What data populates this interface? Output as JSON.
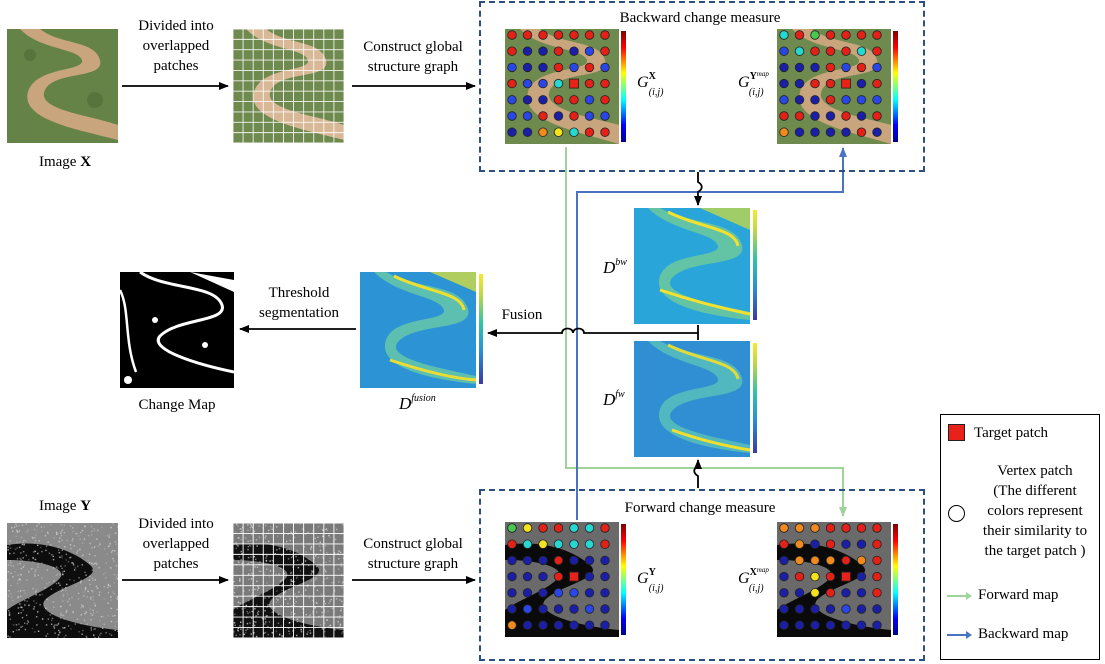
{
  "top": {
    "image_x_label": "Image X",
    "image_x_prefix": "Image ",
    "image_x_bold": "X",
    "divide_label": "Divided into\noverlapped\npatches",
    "construct_label": "Construct global\nstructure graph",
    "backward_title": "Backward change measure",
    "g_x_main": "G",
    "g_x_sup": "X",
    "g_x_sub": "(i,j)",
    "g_ymap_main": "G",
    "g_ymap_sup": "Y",
    "g_ymap_supsub": "map",
    "g_ymap_sub": "(i,j)"
  },
  "middle": {
    "d_bw_main": "D",
    "d_bw_sup": "bw",
    "d_fw_main": "D",
    "d_fw_sup": "fw",
    "fusion_label": "Fusion",
    "d_fusion_main": "D",
    "d_fusion_sup": "fusion",
    "threshold_label": "Threshold\nsegmentation",
    "change_map_label": "Change Map"
  },
  "bottom": {
    "image_y_prefix": "Image ",
    "image_y_bold": "Y",
    "divide_label": "Divided into\noverlapped\npatches",
    "construct_label": "Construct global\nstructure graph",
    "forward_title": "Forward change measure",
    "g_y_main": "G",
    "g_y_sup": "Y",
    "g_y_sub": "(i,j)",
    "g_xmap_main": "G",
    "g_xmap_sup": "X",
    "g_xmap_supsub": "map",
    "g_xmap_sub": "(i,j)"
  },
  "legend": {
    "target_patch": "Target patch",
    "vertex_patch": "Vertex patch\n(The different\ncolors represent\ntheir similarity to\nthe target patch )",
    "forward_map": "Forward map",
    "backward_map": "Backward map"
  },
  "colors": {
    "dash_box": "#2c4f86",
    "forward_arrow": "#9fd39a",
    "backward_arrow": "#4a74c2",
    "target_patch": "#e8221a"
  }
}
